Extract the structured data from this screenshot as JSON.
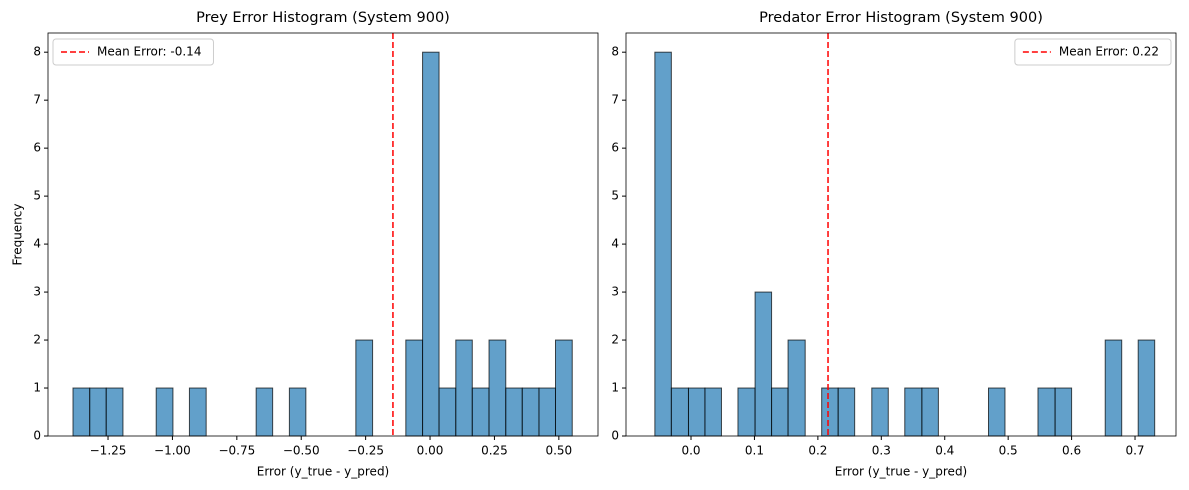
{
  "chart_data": [
    {
      "type": "histogram",
      "title": "Prey Error Histogram (System 900)",
      "xlabel": "Error (y_true - y_pred)",
      "ylabel": "Frequency",
      "bins": [
        -1.386,
        -1.321,
        -1.257,
        -1.192,
        -1.128,
        -1.063,
        -0.998,
        -0.934,
        -0.869,
        -0.805,
        -0.74,
        -0.675,
        -0.611,
        -0.546,
        -0.482,
        -0.417,
        -0.352,
        -0.288,
        -0.223,
        -0.159,
        -0.094,
        -0.029,
        0.035,
        0.1,
        0.164,
        0.229,
        0.294,
        0.358,
        0.423,
        0.487,
        0.552
      ],
      "counts": [
        1,
        1,
        1,
        0,
        0,
        1,
        0,
        1,
        0,
        0,
        0,
        1,
        0,
        1,
        0,
        0,
        0,
        2,
        0,
        0,
        2,
        8,
        1,
        2,
        1,
        2,
        1,
        1,
        1,
        2
      ],
      "color": "#1f77b4",
      "edgecolor": "#000000",
      "alpha": 0.7,
      "mean_line": {
        "value": -0.144,
        "label": "Mean Error: -0.14",
        "color": "red"
      },
      "legend": "upper left",
      "xlim": [
        -1.483,
        0.652
      ],
      "xticks": [
        {
          "value": -1.25,
          "label": "−1.25"
        },
        {
          "value": -1.0,
          "label": "−1.00"
        },
        {
          "value": -0.75,
          "label": "−0.75"
        },
        {
          "value": -0.5,
          "label": "−0.50"
        },
        {
          "value": -0.25,
          "label": "−0.25"
        },
        {
          "value": 0,
          "label": "0.00"
        },
        0.25,
        {
          "value": 0.5,
          "label": "0.50"
        }
      ],
      "ylim": [
        0,
        8.4
      ],
      "yticks": [
        0,
        1,
        2,
        3,
        4,
        5,
        6,
        7,
        8
      ]
    },
    {
      "type": "histogram",
      "title": "Predator Error Histogram (System 900)",
      "xlabel": "Error (y_true - y_pred)",
      "bins": [
        -0.057,
        -0.031,
        -0.004,
        0.022,
        0.048,
        0.074,
        0.101,
        0.127,
        0.153,
        0.18,
        0.206,
        0.232,
        0.258,
        0.285,
        0.311,
        0.337,
        0.364,
        0.39,
        0.416,
        0.442,
        0.469,
        0.495,
        0.521,
        0.547,
        0.574,
        0.6,
        0.626,
        0.653,
        0.679,
        0.705,
        0.731
      ],
      "counts": [
        8,
        1,
        1,
        1,
        0,
        1,
        3,
        1,
        2,
        0,
        1,
        1,
        0,
        1,
        0,
        1,
        1,
        0,
        0,
        0,
        1,
        0,
        0,
        1,
        1,
        0,
        0,
        2,
        0,
        2
      ],
      "color": "#1f77b4",
      "edgecolor": "#000000",
      "alpha": 0.7,
      "mean_line": {
        "value": 0.216,
        "label": "Mean Error: 0.22",
        "color": "red"
      },
      "legend": "upper right",
      "xlim": [
        -0.1025,
        0.7646
      ],
      "xticks": [
        {
          "value": 0,
          "label": "0.0"
        },
        0.1,
        0.2,
        0.3,
        0.4,
        0.5,
        0.6,
        0.7
      ],
      "ylim": [
        0,
        8.4
      ],
      "yticks": [
        0,
        1,
        2,
        3,
        4,
        5,
        6,
        7,
        8
      ]
    }
  ]
}
